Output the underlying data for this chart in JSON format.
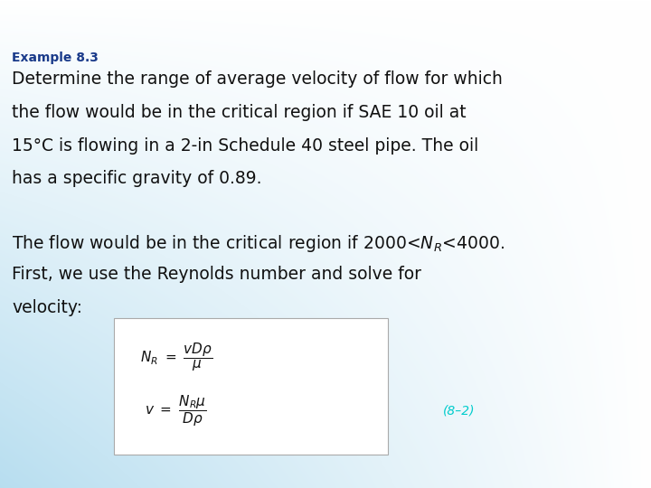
{
  "title": "Example 8.3",
  "title_color": "#1a3a8a",
  "title_fontsize": 10,
  "body_color": "#111111",
  "body_fontsize": 13.5,
  "eq_label_color": "#00cccc",
  "eq_label": "(8–2)",
  "eq_label_fontsize": 10,
  "box_bg": "#ffffff",
  "line1_para1": "Determine the range of average velocity of flow for which",
  "line2_para1": "the flow would be in the critical region if SAE 10 oil at",
  "line3_para1": "15°C is flowing in a 2-in Schedule 40 steel pipe. The oil",
  "line4_para1": "has a specific gravity of 0.89.",
  "line1_para2": "The flow would be in the critical region if 2000<",
  "line1_para2b": "<4000.",
  "line2_para2": "First, we use the Reynolds number and solve for",
  "line3_para2": "velocity:",
  "gradient_colors": [
    "#b8ddf0",
    "#cce5f5",
    "#ddf0fa",
    "#eef7fd",
    "#f7fbfe",
    "#ffffff"
  ],
  "gradient_stops": [
    0.0,
    0.2,
    0.4,
    0.6,
    0.8,
    1.0
  ]
}
